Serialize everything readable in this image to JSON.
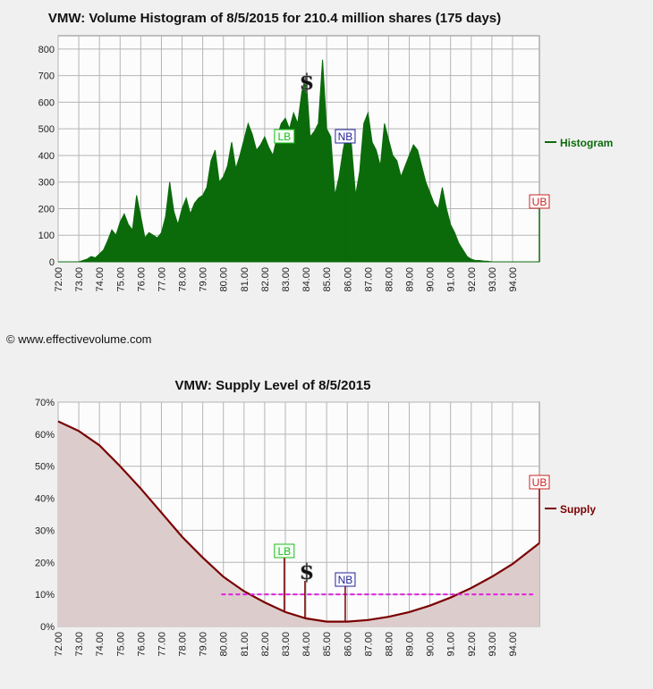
{
  "copyright": "© www.effectivevolume.com",
  "markers": {
    "lb_label": "LB",
    "nb_label": "NB",
    "ub_label": "UB",
    "dollar": "$",
    "lb_price": 82.95,
    "nb_price": 85.9,
    "dollar_price": 83.95
  },
  "colors": {
    "histogram": "#0b6b0b",
    "supply": "#7a0000",
    "supply_fill": "#ddcccc",
    "lb": "#22bb22",
    "nb": "#222299",
    "ub": "#cc2222",
    "reference": "#dd22dd"
  },
  "chart_data": [
    {
      "type": "area",
      "title": "VMW: Volume Histogram of 8/5/2015 for 210.4 million shares (175 days)",
      "legend": "Histogram",
      "legend_position": "right",
      "xlim": [
        72.0,
        95.3
      ],
      "ylim": [
        0,
        850
      ],
      "x_ticks": [
        "72.00",
        "73.00",
        "74.00",
        "75.00",
        "76.00",
        "77.00",
        "78.00",
        "79.00",
        "80.00",
        "81.00",
        "82.00",
        "83.00",
        "84.00",
        "85.00",
        "86.00",
        "87.00",
        "88.00",
        "89.00",
        "90.00",
        "91.00",
        "92.00",
        "93.00",
        "94.00"
      ],
      "y_ticks": [
        "0",
        "100",
        "200",
        "300",
        "400",
        "500",
        "600",
        "700",
        "800"
      ],
      "grid": true,
      "x": [
        72.0,
        73.0,
        73.4,
        73.6,
        73.8,
        74.0,
        74.2,
        74.4,
        74.6,
        74.8,
        75.0,
        75.2,
        75.4,
        75.6,
        75.8,
        76.0,
        76.2,
        76.4,
        76.6,
        76.8,
        77.0,
        77.2,
        77.4,
        77.6,
        77.8,
        78.0,
        78.2,
        78.4,
        78.6,
        78.8,
        79.0,
        79.2,
        79.4,
        79.6,
        79.8,
        80.0,
        80.2,
        80.4,
        80.6,
        80.8,
        81.0,
        81.2,
        81.4,
        81.6,
        81.8,
        82.0,
        82.2,
        82.4,
        82.6,
        82.8,
        83.0,
        83.2,
        83.4,
        83.6,
        83.8,
        84.0,
        84.2,
        84.4,
        84.6,
        84.8,
        85.0,
        85.2,
        85.4,
        85.6,
        85.8,
        86.0,
        86.2,
        86.4,
        86.6,
        86.8,
        87.0,
        87.2,
        87.4,
        87.6,
        87.8,
        88.0,
        88.2,
        88.4,
        88.6,
        88.8,
        89.0,
        89.2,
        89.4,
        89.6,
        89.8,
        90.0,
        90.2,
        90.4,
        90.6,
        90.8,
        91.0,
        91.2,
        91.4,
        91.6,
        91.8,
        92.0,
        92.2,
        92.4,
        92.6,
        92.8,
        93.0,
        95.3
      ],
      "values": [
        0,
        0,
        10,
        20,
        15,
        30,
        45,
        80,
        120,
        100,
        150,
        180,
        140,
        120,
        250,
        170,
        90,
        110,
        100,
        90,
        110,
        170,
        300,
        190,
        140,
        200,
        240,
        180,
        220,
        240,
        250,
        280,
        380,
        420,
        300,
        320,
        360,
        450,
        350,
        400,
        460,
        520,
        480,
        420,
        440,
        470,
        430,
        400,
        470,
        520,
        540,
        500,
        560,
        520,
        640,
        700,
        470,
        490,
        520,
        760,
        500,
        470,
        250,
        320,
        420,
        500,
        440,
        250,
        340,
        520,
        560,
        450,
        420,
        360,
        520,
        460,
        400,
        380,
        320,
        360,
        400,
        440,
        420,
        360,
        300,
        260,
        220,
        200,
        280,
        200,
        140,
        110,
        70,
        45,
        20,
        10,
        5,
        5,
        3,
        2,
        0,
        0
      ]
    },
    {
      "type": "area",
      "title": "VMW: Supply Level of 8/5/2015",
      "legend": "Supply",
      "legend_position": "right",
      "xlim": [
        72.0,
        95.3
      ],
      "ylim": [
        0,
        70
      ],
      "y_unit": "%",
      "x_ticks": [
        "72.00",
        "73.00",
        "74.00",
        "75.00",
        "76.00",
        "77.00",
        "78.00",
        "79.00",
        "80.00",
        "81.00",
        "82.00",
        "83.00",
        "84.00",
        "85.00",
        "86.00",
        "87.00",
        "88.00",
        "89.00",
        "90.00",
        "91.00",
        "92.00",
        "93.00",
        "94.00"
      ],
      "y_ticks": [
        "0%",
        "10%",
        "20%",
        "30%",
        "40%",
        "50%",
        "60%",
        "70%"
      ],
      "grid": true,
      "reference_line": {
        "y": 10,
        "x_start": 79.9,
        "x_end": 95.0
      },
      "x": [
        72.0,
        73.0,
        74.0,
        75.0,
        76.0,
        77.0,
        78.0,
        79.0,
        80.0,
        81.0,
        82.0,
        83.0,
        84.0,
        85.0,
        86.0,
        87.0,
        88.0,
        89.0,
        90.0,
        91.0,
        92.0,
        93.0,
        94.0,
        95.3
      ],
      "values": [
        64,
        61,
        56.5,
        50,
        43,
        35.5,
        28,
        21.5,
        15.5,
        11,
        7.5,
        4.5,
        2.5,
        1.5,
        1.5,
        2,
        3,
        4.5,
        6.5,
        9,
        12,
        15.5,
        19.5,
        26
      ]
    }
  ]
}
